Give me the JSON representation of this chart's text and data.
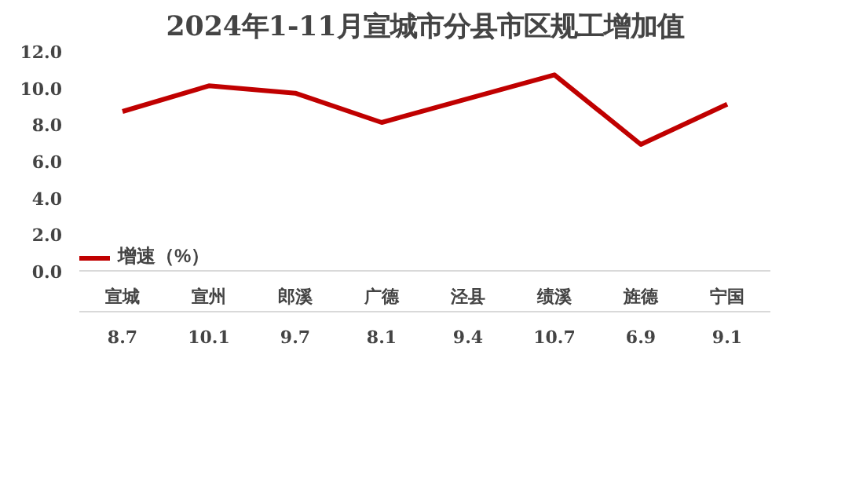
{
  "chart_data": {
    "type": "line",
    "title": "2024年1-11月宣城市分县市区规工增加值",
    "categories": [
      "宣城",
      "宣州",
      "郎溪",
      "广德",
      "泾县",
      "绩溪",
      "旌德",
      "宁国"
    ],
    "series": [
      {
        "name": "增速（%）",
        "color": "#c00000",
        "values": [
          8.7,
          10.1,
          9.7,
          8.1,
          9.4,
          10.7,
          6.9,
          9.1
        ]
      }
    ],
    "ylim": [
      0,
      12
    ],
    "yticks": [
      {
        "value": 0,
        "label": "0.0"
      },
      {
        "value": 2,
        "label": "2.0"
      },
      {
        "value": 4,
        "label": "4.0"
      },
      {
        "value": 6,
        "label": "6.0"
      },
      {
        "value": 8,
        "label": "8.0"
      },
      {
        "value": 10,
        "label": "10.0"
      },
      {
        "value": 12,
        "label": "12.0"
      }
    ],
    "data_labels": true,
    "legend": "bottom left",
    "line_style": "solid"
  }
}
